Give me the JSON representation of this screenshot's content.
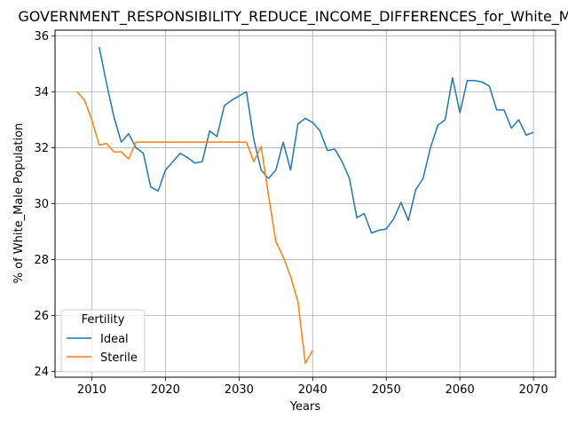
{
  "chart_data": {
    "type": "line",
    "title": "GOVERNMENT_RESPONSIBILITY_REDUCE_INCOME_DIFFERENCES_for_White_Male",
    "xlabel": "Years",
    "ylabel": "% of White_Male Population",
    "xlim": [
      2005,
      2073
    ],
    "ylim": [
      23.8,
      36.2
    ],
    "xticks": [
      2010,
      2020,
      2030,
      2040,
      2050,
      2060,
      2070
    ],
    "yticks": [
      24,
      26,
      28,
      30,
      32,
      34,
      36
    ],
    "grid": true,
    "legend": {
      "title": "Fertility",
      "placement": "lower-left"
    },
    "series": [
      {
        "name": "Ideal",
        "color": "#1f77b4",
        "points": [
          [
            2011,
            35.6
          ],
          [
            2012,
            34.3
          ],
          [
            2013,
            33.1
          ],
          [
            2014,
            32.2
          ],
          [
            2015,
            32.5
          ],
          [
            2016,
            32.0
          ],
          [
            2017,
            31.8
          ],
          [
            2018,
            30.6
          ],
          [
            2019,
            30.45
          ],
          [
            2020,
            31.2
          ],
          [
            2021,
            31.5
          ],
          [
            2022,
            31.8
          ],
          [
            2023,
            31.65
          ],
          [
            2024,
            31.45
          ],
          [
            2025,
            31.5
          ],
          [
            2026,
            32.6
          ],
          [
            2027,
            32.4
          ],
          [
            2028,
            33.5
          ],
          [
            2029,
            33.7
          ],
          [
            2030,
            33.85
          ],
          [
            2031,
            34.0
          ],
          [
            2032,
            32.3
          ],
          [
            2033,
            31.2
          ],
          [
            2034,
            30.9
          ],
          [
            2035,
            31.2
          ],
          [
            2036,
            32.2
          ],
          [
            2037,
            31.2
          ],
          [
            2038,
            32.85
          ],
          [
            2039,
            33.05
          ],
          [
            2040,
            32.9
          ],
          [
            2041,
            32.6
          ],
          [
            2042,
            31.9
          ],
          [
            2043,
            31.95
          ],
          [
            2044,
            31.5
          ],
          [
            2045,
            30.9
          ],
          [
            2046,
            29.5
          ],
          [
            2047,
            29.65
          ],
          [
            2048,
            28.95
          ],
          [
            2049,
            29.05
          ],
          [
            2050,
            29.1
          ],
          [
            2051,
            29.45
          ],
          [
            2052,
            30.05
          ],
          [
            2053,
            29.4
          ],
          [
            2054,
            30.5
          ],
          [
            2055,
            30.9
          ],
          [
            2056,
            32.0
          ],
          [
            2057,
            32.8
          ],
          [
            2058,
            33.0
          ],
          [
            2059,
            34.5
          ],
          [
            2060,
            33.25
          ],
          [
            2061,
            34.4
          ],
          [
            2062,
            34.4
          ],
          [
            2063,
            34.35
          ],
          [
            2064,
            34.2
          ],
          [
            2065,
            33.35
          ],
          [
            2066,
            33.35
          ],
          [
            2067,
            32.7
          ],
          [
            2068,
            33.0
          ],
          [
            2069,
            32.45
          ],
          [
            2070,
            32.55
          ]
        ]
      },
      {
        "name": "Sterile",
        "color": "#ff7f0e",
        "points": [
          [
            2008,
            34.0
          ],
          [
            2009,
            33.7
          ],
          [
            2010,
            33.0
          ],
          [
            2011,
            32.1
          ],
          [
            2012,
            32.15
          ],
          [
            2013,
            31.85
          ],
          [
            2014,
            31.85
          ],
          [
            2015,
            31.6
          ],
          [
            2016,
            32.2
          ],
          [
            2017,
            32.2
          ],
          [
            2018,
            32.2
          ],
          [
            2019,
            32.2
          ],
          [
            2020,
            32.2
          ],
          [
            2021,
            32.2
          ],
          [
            2022,
            32.2
          ],
          [
            2023,
            32.2
          ],
          [
            2024,
            32.2
          ],
          [
            2025,
            32.2
          ],
          [
            2026,
            32.2
          ],
          [
            2027,
            32.2
          ],
          [
            2028,
            32.2
          ],
          [
            2029,
            32.2
          ],
          [
            2030,
            32.2
          ],
          [
            2031,
            32.2
          ],
          [
            2032,
            31.5
          ],
          [
            2033,
            32.05
          ],
          [
            2034,
            30.3
          ],
          [
            2035,
            28.65
          ],
          [
            2036,
            28.1
          ],
          [
            2037,
            27.4
          ],
          [
            2038,
            26.5
          ],
          [
            2039,
            24.3
          ],
          [
            2040,
            24.75
          ]
        ]
      }
    ]
  }
}
